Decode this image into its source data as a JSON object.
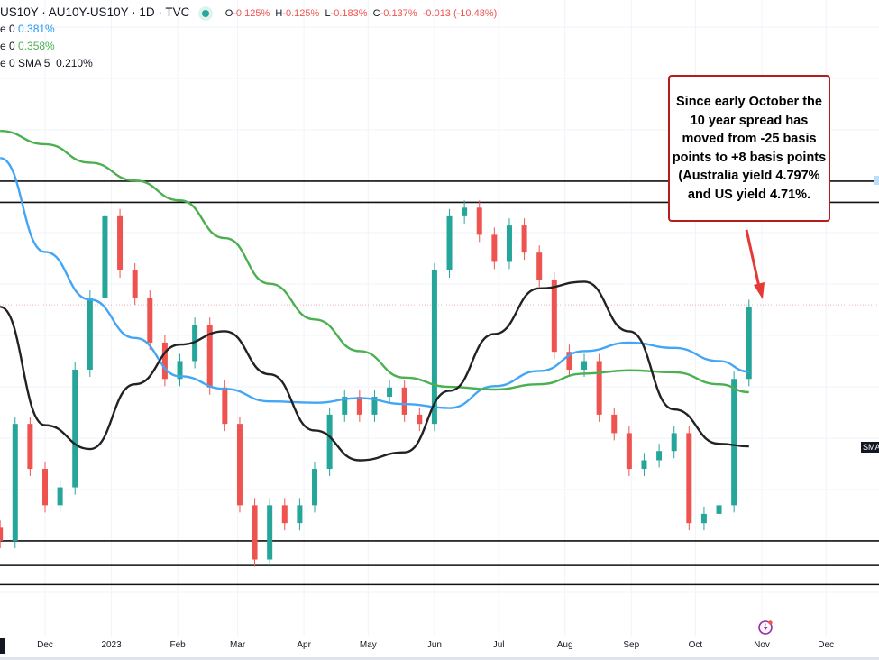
{
  "header": {
    "title": "US10Y · AU10Y-US10Y · 1D · TVC",
    "ohlc": {
      "o_label": "O",
      "o": "-0.125%",
      "h_label": "H",
      "h": "-0.125%",
      "l_label": "L",
      "l": "-0.183%",
      "c_label": "C",
      "c": "-0.137%",
      "change": "-0.013 (-10.48%)"
    },
    "indicators": [
      {
        "prefix": "e 0",
        "name": "",
        "value": "0.381%",
        "color": "#2196f3"
      },
      {
        "prefix": "e 0",
        "name": "",
        "value": "0.358%",
        "color": "#4caf50"
      },
      {
        "prefix": "e 0",
        "name": "SMA 5",
        "value": "0.210%",
        "color": "#131722"
      }
    ]
  },
  "annotation": "Since early October the 10 year spread has moved from -25 basis points to +8 basis points (Australia yield 4.797% and US yield 4.71%.",
  "right_tag": "SMA",
  "colors": {
    "up": "#26a69a",
    "down": "#ef5350",
    "ma_blue": "#42a5f5",
    "ma_green": "#4caf50",
    "ma_black": "#222222",
    "annotation": "#b71c1c"
  },
  "icons": {
    "alert": "lightning-icon"
  },
  "chart_data": {
    "type": "candlestick",
    "ylim": [
      -0.457,
      0.541
    ],
    "grid": true,
    "x_ticks": [
      "Dec",
      "2023",
      "Feb",
      "Mar",
      "Apr",
      "May",
      "Jun",
      "Jul",
      "Aug",
      "Sep",
      "Oct",
      "Nov",
      "Dec"
    ],
    "x_tick_dates": [
      "2022-12-01",
      "2023-01-01",
      "2023-02-01",
      "2023-03-01",
      "2023-04-01",
      "2023-05-01",
      "2023-06-01",
      "2023-07-01",
      "2023-08-01",
      "2023-09-01",
      "2023-10-01",
      "2023-11-01",
      "2023-12-01"
    ],
    "candles": {
      "start": "2022-11-10",
      "interval": "1W",
      "close": [
        -0.277,
        -0.1,
        -0.168,
        -0.223,
        -0.196,
        -0.018,
        0.091,
        0.214,
        0.132,
        0.091,
        0.023,
        -0.032,
        -0.005,
        0.05,
        -0.045,
        -0.1,
        -0.223,
        -0.305,
        -0.223,
        -0.25,
        -0.223,
        -0.168,
        -0.086,
        -0.059,
        -0.086,
        -0.059,
        -0.045,
        -0.086,
        -0.1,
        0.132,
        0.214,
        0.227,
        0.186,
        0.145,
        0.2,
        0.159,
        0.118,
        0.009,
        -0.018,
        -0.005,
        -0.086,
        -0.114,
        -0.168,
        -0.155,
        -0.141,
        -0.114,
        -0.25,
        -0.236,
        -0.223,
        -0.032,
        0.077
      ]
    },
    "moving_averages": {
      "dates": [
        "2022-11-10",
        "2022-12-01",
        "2022-12-22",
        "2023-01-12",
        "2023-02-02",
        "2023-02-23",
        "2023-03-16",
        "2023-04-06",
        "2023-04-27",
        "2023-05-18",
        "2023-06-08",
        "2023-06-29",
        "2023-07-20",
        "2023-08-10",
        "2023-08-31",
        "2023-09-21",
        "2023-10-12",
        "2023-10-26"
      ],
      "series": [
        {
          "color": "#42a5f5",
          "values": [
            0.302,
            0.16,
            0.088,
            0.03,
            -0.028,
            -0.047,
            -0.066,
            -0.068,
            -0.061,
            -0.07,
            -0.076,
            -0.043,
            -0.02,
            0.01,
            0.023,
            0.015,
            -0.005,
            -0.021
          ]
        },
        {
          "color": "#4caf50",
          "values": [
            0.343,
            0.323,
            0.295,
            0.268,
            0.238,
            0.181,
            0.112,
            0.058,
            0.01,
            -0.03,
            -0.044,
            -0.048,
            -0.04,
            -0.024,
            -0.019,
            -0.022,
            -0.04,
            -0.052
          ]
        },
        {
          "name": "SMA 5",
          "color": "#222222",
          "values": [
            0.077,
            -0.102,
            -0.138,
            -0.04,
            0.02,
            0.04,
            -0.025,
            -0.11,
            -0.155,
            -0.143,
            -0.05,
            0.036,
            0.105,
            0.115,
            0.04,
            -0.078,
            -0.13,
            -0.134
          ]
        }
      ]
    },
    "horizontal_lines": [
      0.267,
      0.235,
      -0.277,
      -0.314,
      -0.343
    ],
    "last_price_line": 0.08
  }
}
